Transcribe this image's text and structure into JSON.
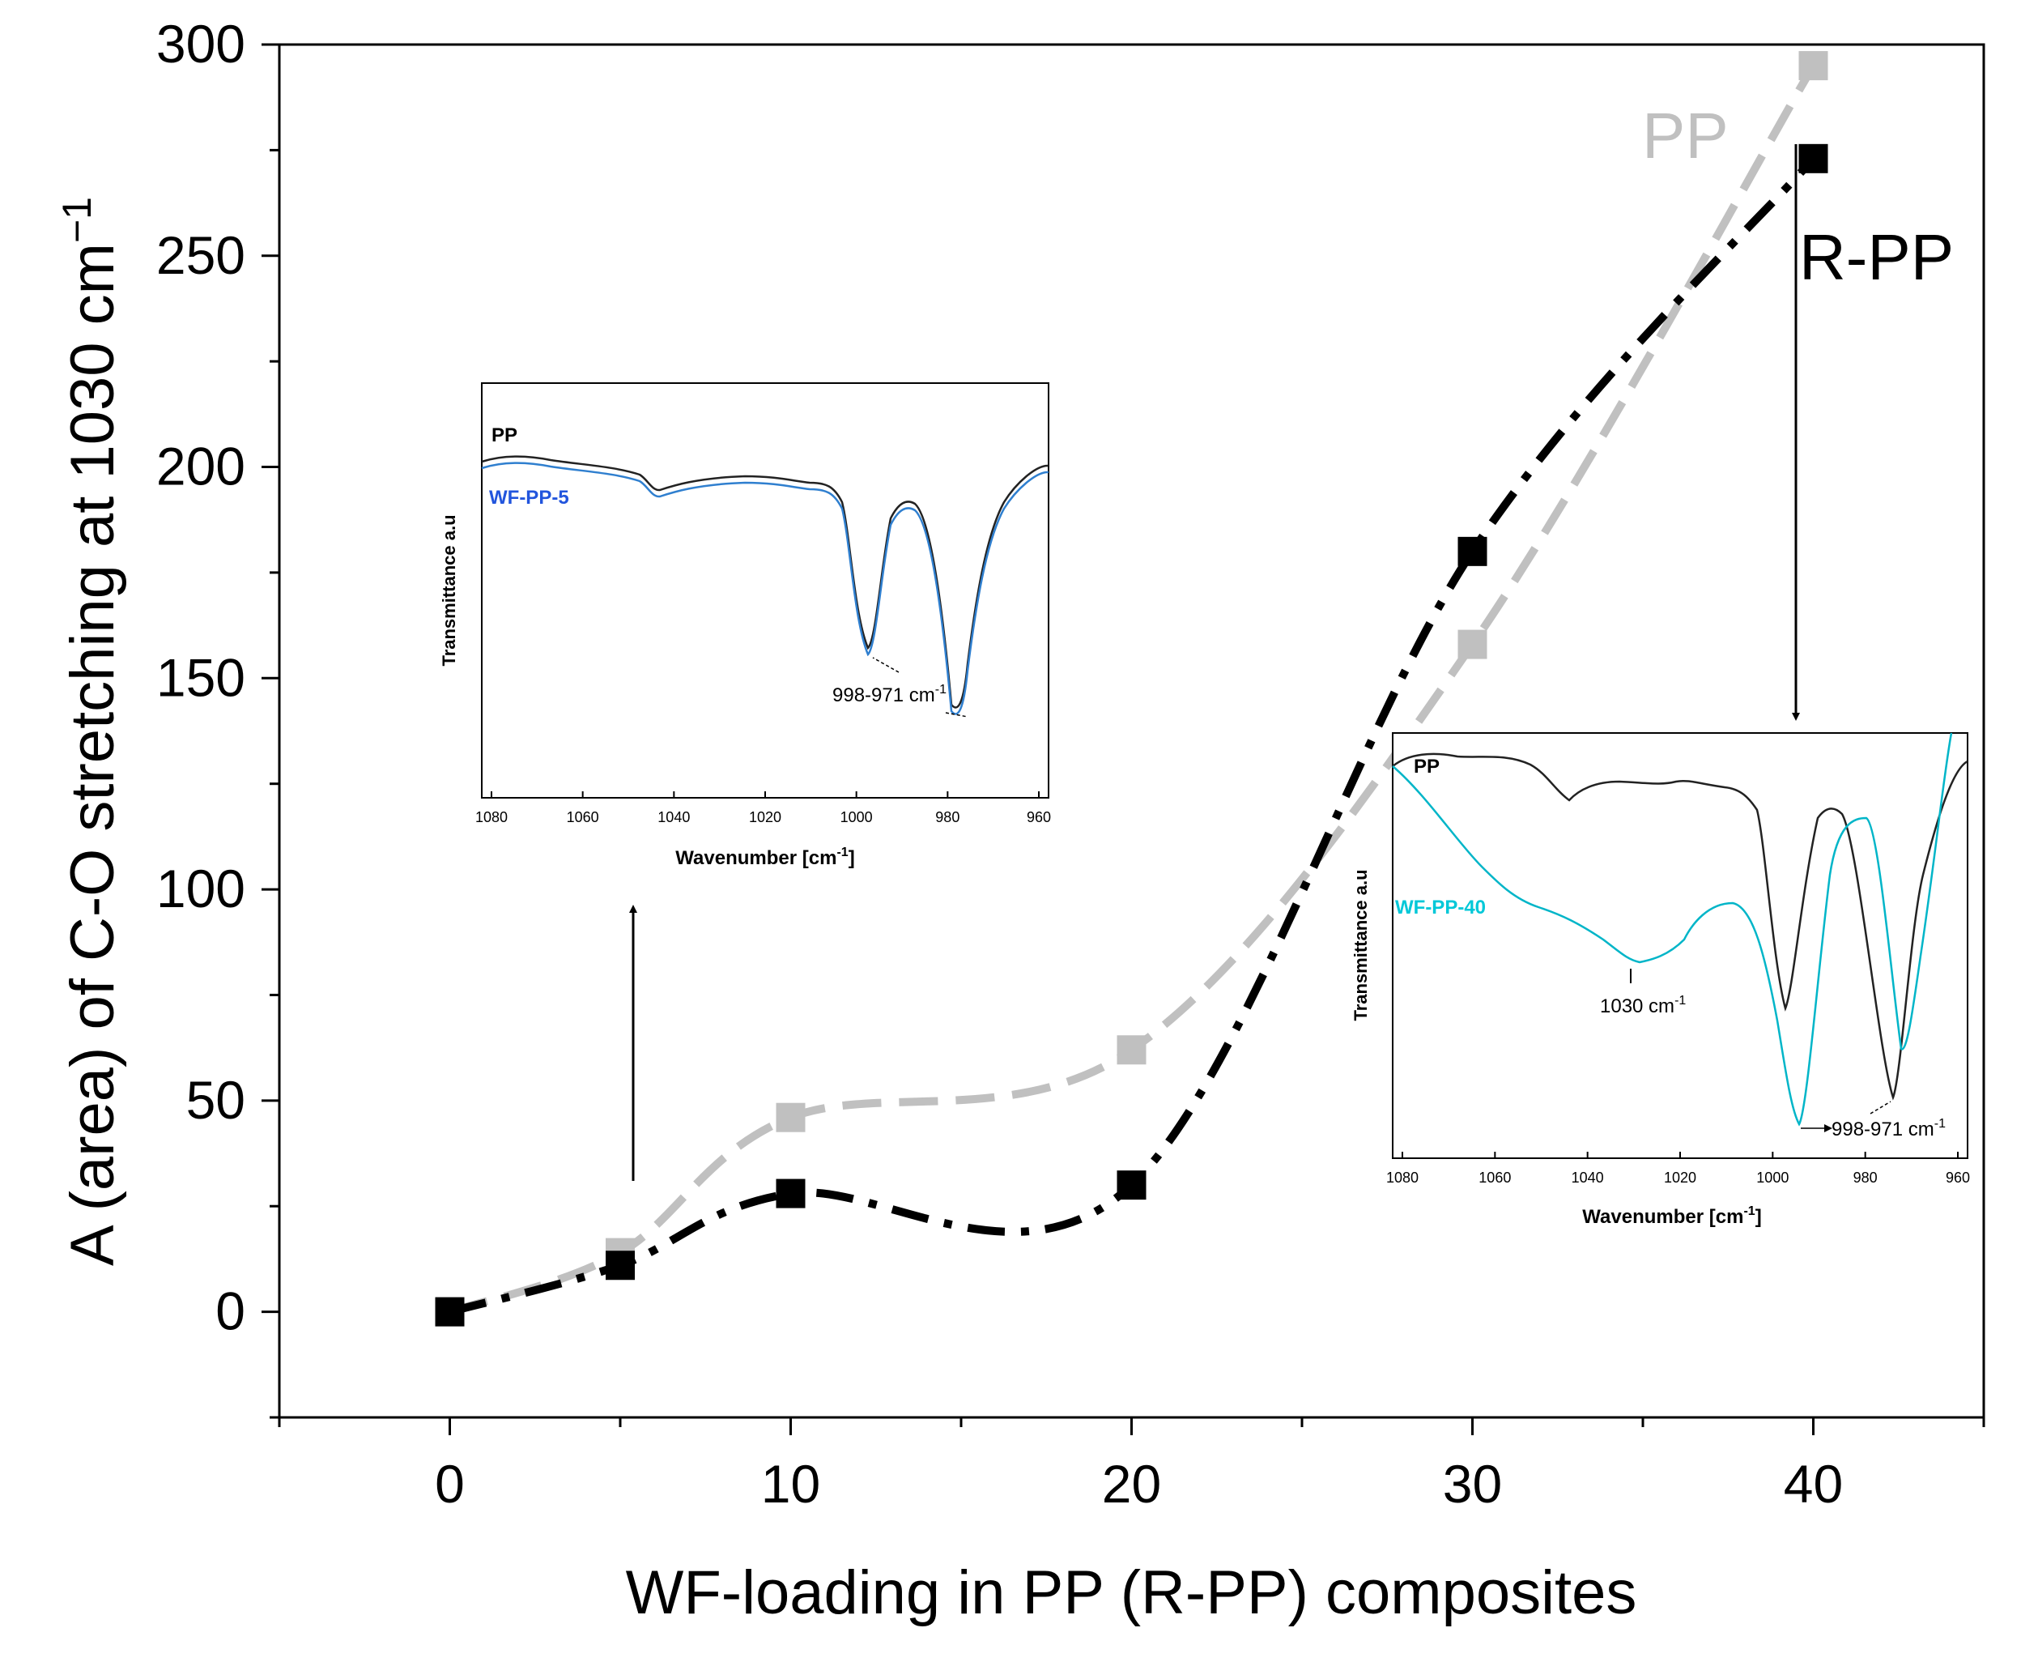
{
  "chart_data": {
    "type": "line",
    "xlabel": "WF-loading in PP (R-PP) composites",
    "ylabel_main": "A (area) of C-O stretching at 1030 cm",
    "ylabel_sup": "−1",
    "xlim": [
      -5,
      45
    ],
    "ylim": [
      -25,
      300
    ],
    "x_ticks": [
      0,
      10,
      20,
      30,
      40
    ],
    "y_ticks": [
      0,
      50,
      100,
      150,
      200,
      250,
      300
    ],
    "series": [
      {
        "name": "PP",
        "color": "#c0c0c0",
        "line": "dashed",
        "x": [
          0,
          5,
          10,
          20,
          30,
          40
        ],
        "y": [
          0,
          14,
          46,
          62,
          158,
          295
        ]
      },
      {
        "name": "R-PP",
        "color": "#000000",
        "line": "dash-dot",
        "x": [
          0,
          5,
          10,
          20,
          30,
          40
        ],
        "y": [
          0,
          11,
          28,
          30,
          180,
          273
        ]
      }
    ],
    "insets": [
      {
        "xlabel_main": "Wavenumber [cm",
        "xlabel_sup": "-1",
        "xlabel_tail": "]",
        "ylabel": "Transmittance a.u",
        "x_ticks": [
          1080,
          1060,
          1040,
          1020,
          1000,
          980,
          960
        ],
        "series_labels": [
          {
            "name": "PP",
            "color": "#000000"
          },
          {
            "name": "WF-PP-5",
            "color": "#2255dd"
          }
        ],
        "annotation_main": "998-971 cm",
        "annotation_sup": "-1"
      },
      {
        "xlabel_main": "Wavenumber [cm",
        "xlabel_sup": "-1",
        "xlabel_tail": "]",
        "ylabel": "Transmittance a.u",
        "x_ticks": [
          1080,
          1060,
          1040,
          1020,
          1000,
          980,
          960
        ],
        "series_labels": [
          {
            "name": "PP",
            "color": "#000000"
          },
          {
            "name": "WF-PP-40",
            "color": "#00c8d8"
          }
        ],
        "annotation_peak_main": "1030 cm",
        "annotation_peak_sup": "-1",
        "annotation_main": "998-971 cm",
        "annotation_sup": "-1"
      }
    ]
  }
}
